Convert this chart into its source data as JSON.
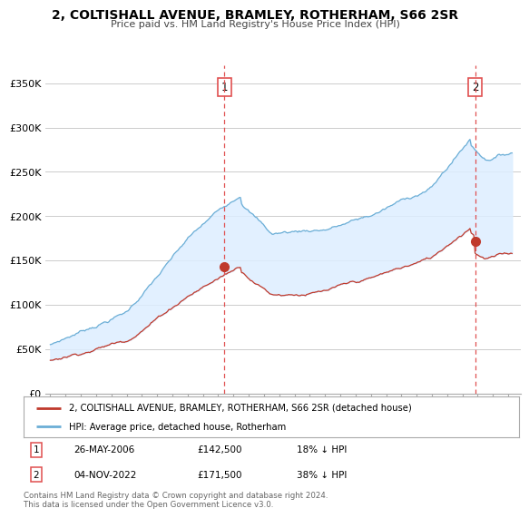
{
  "title": "2, COLTISHALL AVENUE, BRAMLEY, ROTHERHAM, S66 2SR",
  "subtitle": "Price paid vs. HM Land Registry's House Price Index (HPI)",
  "ylabel_ticks": [
    "£0",
    "£50K",
    "£100K",
    "£150K",
    "£200K",
    "£250K",
    "£300K",
    "£350K"
  ],
  "ytick_values": [
    0,
    50000,
    100000,
    150000,
    200000,
    250000,
    300000,
    350000
  ],
  "ylim": [
    0,
    370000
  ],
  "xlim_start": 1994.7,
  "xlim_end": 2025.8,
  "sale1_date": 2006.4,
  "sale1_price": 142500,
  "sale2_date": 2022.84,
  "sale2_price": 171500,
  "hpi_color": "#6baed6",
  "price_color": "#c0392b",
  "fill_color": "#ddeeff",
  "vline_color": "#e05050",
  "legend_label_price": "2, COLTISHALL AVENUE, BRAMLEY, ROTHERHAM, S66 2SR (detached house)",
  "legend_label_hpi": "HPI: Average price, detached house, Rotherham",
  "footer": "Contains HM Land Registry data © Crown copyright and database right 2024.\nThis data is licensed under the Open Government Licence v3.0.",
  "background_color": "#ffffff",
  "grid_color": "#cccccc",
  "sale1_text": "26-MAY-2006",
  "sale1_hpi_pct": "18% ↓ HPI",
  "sale2_text": "04-NOV-2022",
  "sale2_hpi_pct": "38% ↓ HPI"
}
